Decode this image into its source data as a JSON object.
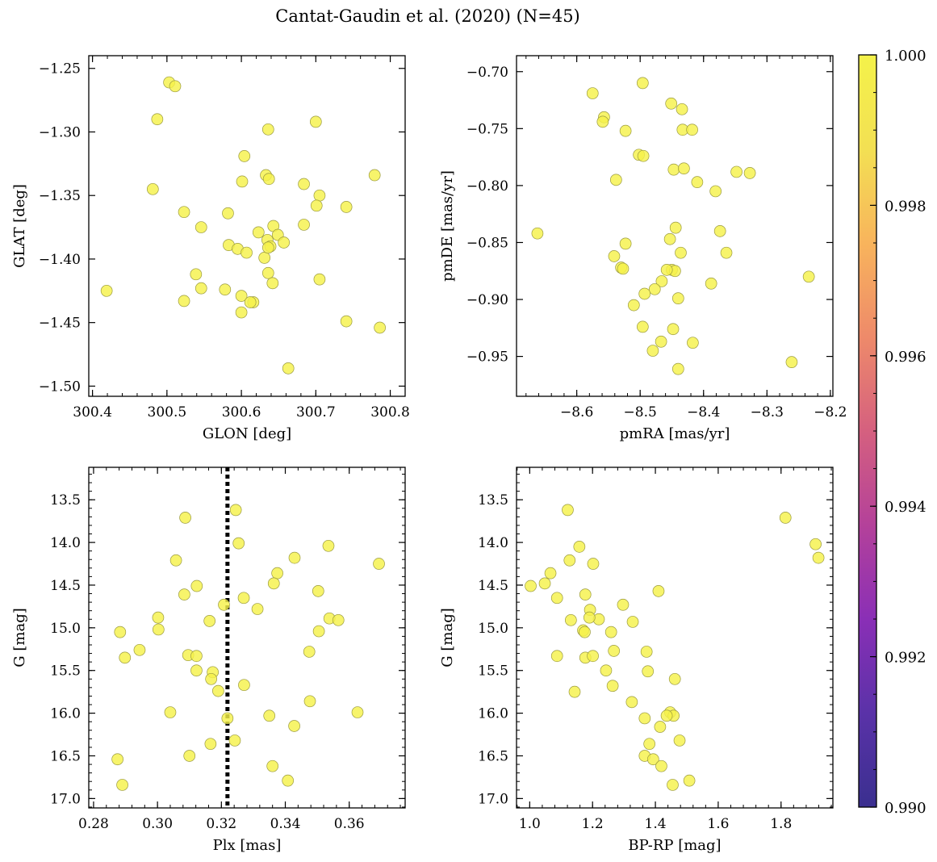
{
  "title": "Cantat-Gaudin et al. (2020) (N=45)",
  "colors": {
    "marker": "#f5f24a",
    "marker_edge": "#9a9a40",
    "vline": "#000000"
  },
  "colorbar": {
    "min": 0.99,
    "max": 1.0,
    "ticks": [
      0.99,
      0.992,
      0.994,
      0.996,
      0.998,
      1.0
    ],
    "tick_labels": [
      "0.990",
      "0.992",
      "0.994",
      "0.996",
      "0.998",
      "1.000"
    ],
    "colormap": "plasma",
    "stops": [
      "#3a2f8f",
      "#5a32a8",
      "#8a2fb6",
      "#b4419a",
      "#d5607f",
      "#ee8a6a",
      "#f8b45c",
      "#f3e053",
      "#f4f24a"
    ]
  },
  "chart_data": [
    {
      "id": "glon-glat",
      "type": "scatter",
      "xlabel": "GLON [deg]",
      "ylabel": "GLAT [deg]",
      "xlim": [
        300.395,
        300.82
      ],
      "ylim": [
        -1.508,
        -1.24
      ],
      "y_inverted": false,
      "xticks": [
        300.4,
        300.5,
        300.6,
        300.7,
        300.8
      ],
      "xtick_labels": [
        "300.4",
        "300.5",
        "300.6",
        "300.7",
        "300.8"
      ],
      "yticks": [
        -1.25,
        -1.3,
        -1.35,
        -1.4,
        -1.45,
        -1.5
      ],
      "ytick_labels": [
        "−1.25",
        "−1.30",
        "−1.35",
        "−1.40",
        "−1.45",
        "−1.50"
      ],
      "x": [
        300.503,
        300.511,
        300.487,
        300.636,
        300.7,
        300.604,
        300.481,
        300.633,
        300.637,
        300.601,
        300.684,
        300.705,
        300.779,
        300.701,
        300.741,
        300.523,
        300.546,
        300.582,
        300.643,
        300.684,
        300.649,
        300.623,
        300.657,
        300.583,
        300.635,
        300.639,
        300.595,
        300.607,
        300.631,
        300.539,
        300.636,
        300.642,
        300.705,
        300.419,
        300.578,
        300.546,
        300.6,
        300.616,
        300.523,
        300.612,
        300.6,
        300.741,
        300.786,
        300.663,
        300.636
      ],
      "y": [
        -1.261,
        -1.264,
        -1.29,
        -1.298,
        -1.292,
        -1.319,
        -1.345,
        -1.334,
        -1.337,
        -1.339,
        -1.341,
        -1.35,
        -1.334,
        -1.358,
        -1.359,
        -1.363,
        -1.375,
        -1.364,
        -1.374,
        -1.373,
        -1.381,
        -1.379,
        -1.387,
        -1.389,
        -1.385,
        -1.39,
        -1.392,
        -1.395,
        -1.399,
        -1.412,
        -1.411,
        -1.419,
        -1.416,
        -1.425,
        -1.424,
        -1.423,
        -1.429,
        -1.434,
        -1.433,
        -1.434,
        -1.442,
        -1.449,
        -1.454,
        -1.486,
        -1.391
      ]
    },
    {
      "id": "pm",
      "type": "scatter",
      "xlabel": "pmRA [mas/yr]",
      "ylabel": "pmDE [mas/yr]",
      "xlim": [
        -8.695,
        -8.196
      ],
      "ylim": [
        -0.985,
        -0.686
      ],
      "y_inverted": false,
      "xticks": [
        -8.6,
        -8.5,
        -8.4,
        -8.3,
        -8.2
      ],
      "xtick_labels": [
        "−8.6",
        "−8.5",
        "−8.4",
        "−8.3",
        "−8.2"
      ],
      "yticks": [
        -0.7,
        -0.75,
        -0.8,
        -0.85,
        -0.9,
        -0.95
      ],
      "ytick_labels": [
        "−0.70",
        "−0.75",
        "−0.80",
        "−0.85",
        "−0.90",
        "−0.95"
      ],
      "x": [
        -8.496,
        -8.575,
        -8.557,
        -8.559,
        -8.451,
        -8.434,
        -8.523,
        -8.433,
        -8.418,
        -8.502,
        -8.495,
        -8.538,
        -8.447,
        -8.431,
        -8.41,
        -8.348,
        -8.327,
        -8.381,
        -8.374,
        -8.444,
        -8.453,
        -8.523,
        -8.436,
        -8.364,
        -8.541,
        -8.53,
        -8.527,
        -8.45,
        -8.445,
        -8.466,
        -8.477,
        -8.493,
        -8.388,
        -8.44,
        -8.234,
        -8.51,
        -8.496,
        -8.448,
        -8.662,
        -8.417,
        -8.467,
        -8.48,
        -8.261,
        -8.44,
        -8.458
      ],
      "y": [
        -0.71,
        -0.719,
        -0.74,
        -0.744,
        -0.728,
        -0.733,
        -0.752,
        -0.751,
        -0.751,
        -0.773,
        -0.774,
        -0.795,
        -0.786,
        -0.785,
        -0.797,
        -0.788,
        -0.789,
        -0.805,
        -0.84,
        -0.837,
        -0.847,
        -0.851,
        -0.859,
        -0.859,
        -0.862,
        -0.872,
        -0.873,
        -0.874,
        -0.875,
        -0.884,
        -0.891,
        -0.895,
        -0.886,
        -0.899,
        -0.88,
        -0.905,
        -0.924,
        -0.926,
        -0.842,
        -0.938,
        -0.937,
        -0.945,
        -0.955,
        -0.961,
        -0.874
      ]
    },
    {
      "id": "plx-g",
      "type": "scatter",
      "xlabel": "Plx [mas]",
      "ylabel": "G [mag]",
      "xlim": [
        0.2785,
        0.3775
      ],
      "ylim": [
        17.11,
        13.12
      ],
      "y_inverted": true,
      "xticks": [
        0.28,
        0.3,
        0.32,
        0.34,
        0.36
      ],
      "xtick_labels": [
        "0.28",
        "0.30",
        "0.32",
        "0.34",
        "0.36"
      ],
      "yticks": [
        13.5,
        14.0,
        14.5,
        15.0,
        15.5,
        16.0,
        16.5,
        17.0
      ],
      "ytick_labels": [
        "13.5",
        "14.0",
        "14.5",
        "15.0",
        "15.5",
        "16.0",
        "16.5",
        "17.0"
      ],
      "vline": 0.3219,
      "x": [
        0.3245,
        0.3087,
        0.3254,
        0.3535,
        0.3058,
        0.3429,
        0.3693,
        0.3375,
        0.3123,
        0.3364,
        0.3084,
        0.327,
        0.3208,
        0.3503,
        0.3313,
        0.3538,
        0.3566,
        0.3002,
        0.3163,
        0.2883,
        0.3003,
        0.3505,
        0.2944,
        0.2898,
        0.3096,
        0.3122,
        0.3475,
        0.3122,
        0.3173,
        0.3168,
        0.3271,
        0.319,
        0.3477,
        0.304,
        0.3626,
        0.335,
        0.3219,
        0.3428,
        0.3242,
        0.31,
        0.3166,
        0.2875,
        0.336,
        0.3408,
        0.289
      ],
      "y": [
        13.62,
        13.71,
        14.01,
        14.04,
        14.21,
        14.18,
        14.25,
        14.36,
        14.51,
        14.48,
        14.61,
        14.65,
        14.73,
        14.57,
        14.78,
        14.89,
        14.91,
        14.88,
        14.92,
        15.05,
        15.02,
        15.04,
        15.26,
        15.35,
        15.32,
        15.33,
        15.28,
        15.5,
        15.52,
        15.6,
        15.67,
        15.74,
        15.86,
        15.99,
        15.99,
        16.03,
        16.06,
        16.15,
        16.32,
        16.5,
        16.36,
        16.54,
        16.62,
        16.79,
        16.84
      ]
    },
    {
      "id": "cmd",
      "type": "scatter",
      "xlabel": "BP-RP [mag]",
      "ylabel": "G [mag]",
      "xlim": [
        0.958,
        1.965
      ],
      "ylim": [
        17.11,
        13.12
      ],
      "y_inverted": true,
      "xticks": [
        1.0,
        1.2,
        1.4,
        1.6,
        1.8
      ],
      "xtick_labels": [
        "1.0",
        "1.2",
        "1.4",
        "1.6",
        "1.8"
      ],
      "yticks": [
        13.5,
        14.0,
        14.5,
        15.0,
        15.5,
        16.0,
        16.5,
        17.0
      ],
      "ytick_labels": [
        "13.5",
        "14.0",
        "14.5",
        "15.0",
        "15.5",
        "16.0",
        "16.5",
        "17.0"
      ],
      "x": [
        1.121,
        1.814,
        1.158,
        1.91,
        1.919,
        1.127,
        1.202,
        1.066,
        1.048,
        1.003,
        1.087,
        1.177,
        1.41,
        1.192,
        1.297,
        1.328,
        1.131,
        1.22,
        1.19,
        1.17,
        1.175,
        1.268,
        1.087,
        1.177,
        1.201,
        1.372,
        1.259,
        1.376,
        1.243,
        1.462,
        1.264,
        1.143,
        1.325,
        1.447,
        1.366,
        1.458,
        1.415,
        1.477,
        1.381,
        1.366,
        1.393,
        1.419,
        1.455,
        1.508,
        1.436
      ],
      "y": [
        13.62,
        13.71,
        14.05,
        14.02,
        14.18,
        14.21,
        14.25,
        14.36,
        14.48,
        14.51,
        14.65,
        14.61,
        14.57,
        14.79,
        14.73,
        14.93,
        14.91,
        14.9,
        14.88,
        15.03,
        15.05,
        15.27,
        15.33,
        15.35,
        15.33,
        15.28,
        15.05,
        15.51,
        15.5,
        15.6,
        15.68,
        15.75,
        15.87,
        15.99,
        16.06,
        16.03,
        16.16,
        16.32,
        16.36,
        16.5,
        16.54,
        16.62,
        16.84,
        16.79,
        16.03
      ]
    }
  ]
}
